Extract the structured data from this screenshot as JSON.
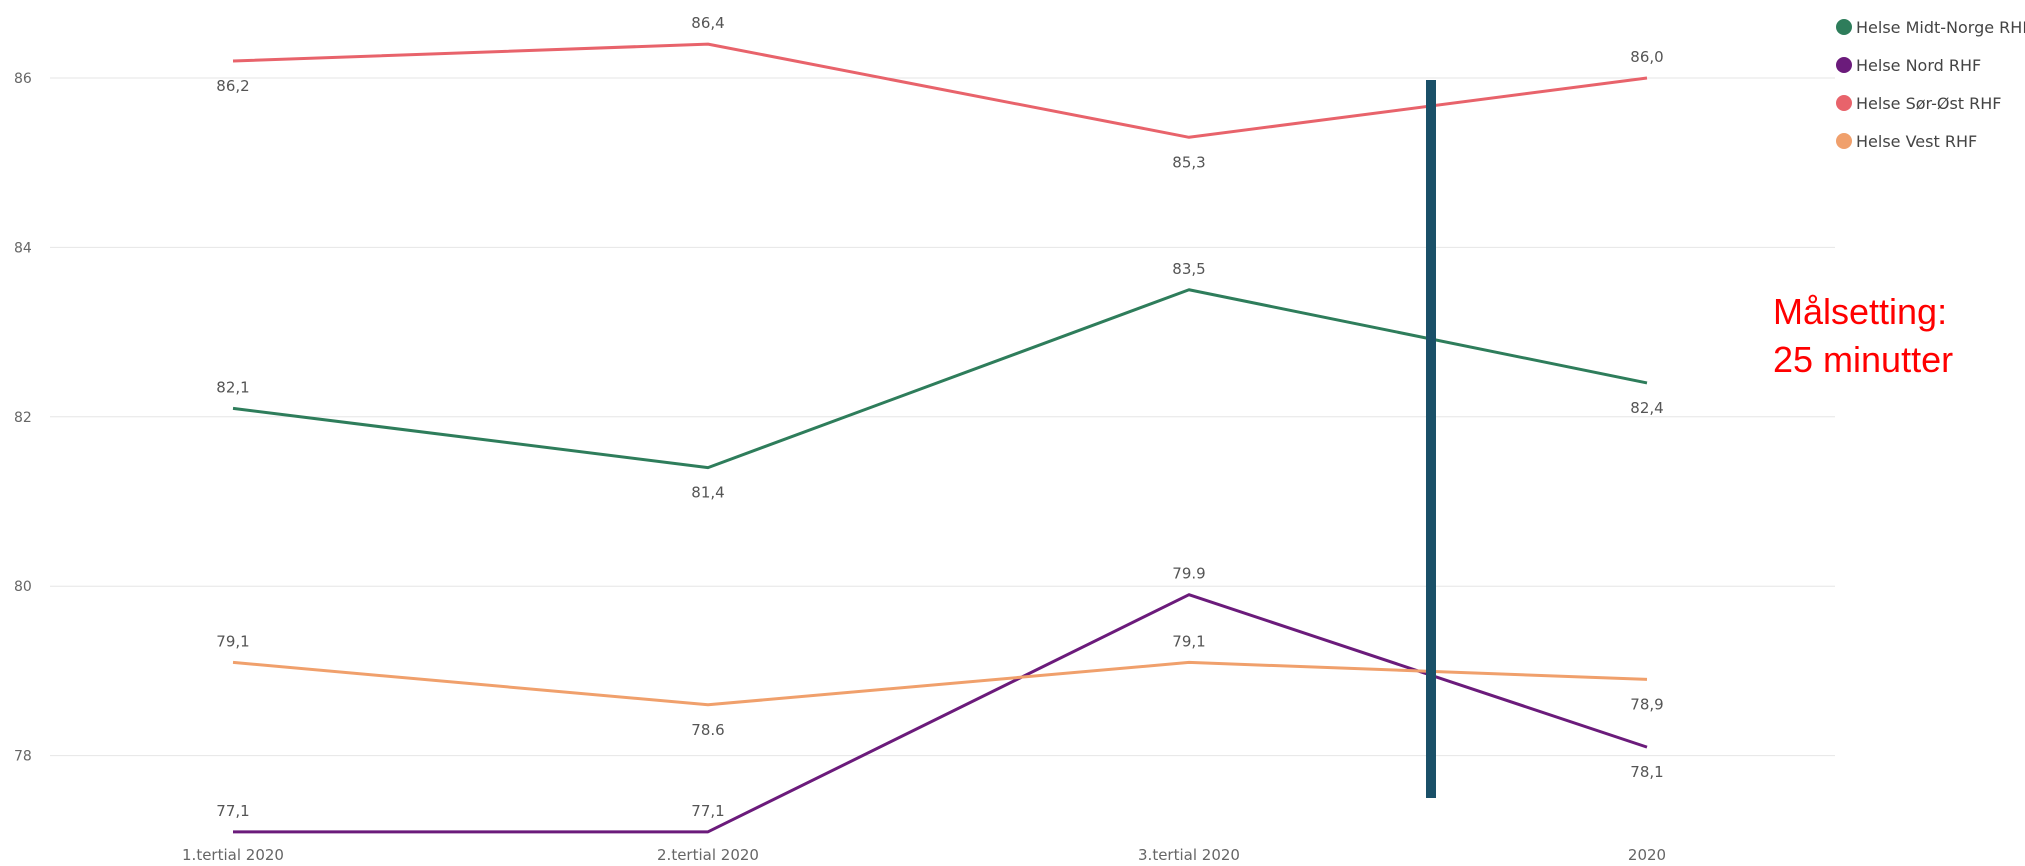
{
  "chart_data": {
    "type": "line",
    "categories": [
      "1.tertial 2020",
      "2.tertial 2020",
      "3.tertial 2020",
      "2020"
    ],
    "y_ticks": [
      "78",
      "80",
      "82",
      "84",
      "86"
    ],
    "ylim": [
      77.1,
      86.7
    ],
    "grid": true,
    "legend_position": "top-right",
    "series": [
      {
        "name": "Helse Midt-Norge RHF",
        "color": "#2e7d5b",
        "values": [
          82.1,
          81.4,
          83.5,
          82.4
        ],
        "labels": [
          "82,1",
          "81,4",
          "83,5",
          "82,4"
        ],
        "label_pos": [
          "above",
          "below",
          "above",
          "below"
        ]
      },
      {
        "name": "Helse Nord RHF",
        "color": "#6b1b7b",
        "values": [
          77.1,
          77.1,
          79.9,
          78.1
        ],
        "labels": [
          "77,1",
          "77,1",
          "79.9",
          "78,1"
        ],
        "label_pos": [
          "above",
          "above",
          "above",
          "below"
        ]
      },
      {
        "name": "Helse Sør-Øst RHF",
        "color": "#e8636b",
        "values": [
          86.2,
          86.4,
          85.3,
          86.0
        ],
        "labels": [
          "86,2",
          "86,4",
          "85,3",
          "86,0"
        ],
        "label_pos": [
          "below",
          "above",
          "below",
          "above"
        ]
      },
      {
        "name": "Helse Vest RHF",
        "color": "#f0a06c",
        "values": [
          79.1,
          78.6,
          79.1,
          78.9
        ],
        "labels": [
          "79,1",
          "78.6",
          "79,1",
          "78,9"
        ],
        "label_pos": [
          "above",
          "below",
          "above",
          "below"
        ]
      }
    ],
    "annotation": {
      "line1": "Målsetting:",
      "line2": "25 minutter"
    },
    "marker_line_color": "#1a5068"
  }
}
